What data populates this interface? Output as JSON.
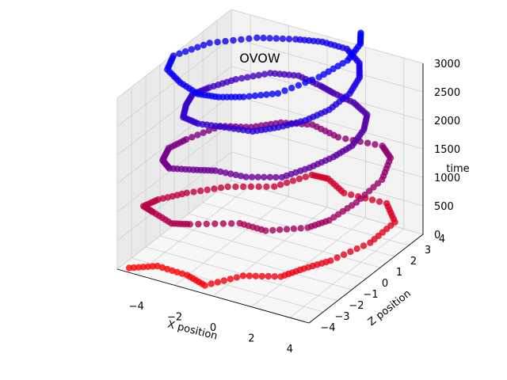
{
  "chart_data": {
    "type": "scatter",
    "projection": "3d",
    "title": "OVOW",
    "xlabel": "X position",
    "ylabel": "Z position",
    "zlabel": "time",
    "xlim": [
      -5,
      5
    ],
    "ylim": [
      -4,
      4
    ],
    "zlim": [
      0,
      3000
    ],
    "x_ticks": [
      "−4",
      "−2",
      "0",
      "2",
      "4"
    ],
    "y_ticks": [
      "−4",
      "−3",
      "−2",
      "−1",
      "0",
      "1",
      "2",
      "3",
      "4"
    ],
    "z_ticks": [
      "0",
      "500",
      "1000",
      "1500",
      "2000",
      "2500",
      "3000"
    ],
    "grid": true,
    "color_encoding": {
      "start_color": "#ff0000",
      "end_color": "#0000ff",
      "variable": "time"
    },
    "series": [
      {
        "x": [
          -4.6,
          -3.5,
          -1.8,
          -0.5,
          0.6,
          2.2,
          2.8,
          3.6,
          4.4,
          4.5,
          3.4,
          1.4,
          0.2,
          -0.5,
          -1.2,
          -2.8,
          -3.9,
          -4.5,
          -4.6,
          -3.8,
          -2.4,
          -1.5,
          0.5,
          2.0,
          3.6,
          4.2,
          4.5,
          4.5,
          3.9,
          3.1,
          1.1,
          -0.4,
          -1.6,
          -2.4,
          -3.5,
          -4.0,
          -4.1,
          -3.6,
          -2.8,
          -1.7,
          -0.7,
          0.9,
          2.4,
          3.1,
          3.6,
          3.9,
          3.7,
          3.2,
          2.2,
          1.1,
          0.3,
          -0.9,
          -2.0,
          -2.9,
          -3.4,
          -3.6,
          -3.2,
          -2.6,
          -1.6,
          -0.3,
          1.1,
          2.0,
          2.8,
          3.3,
          3.4,
          3.1,
          2.5,
          1.4,
          0.2,
          -0.9,
          -2.4,
          -3.9,
          -4.6,
          -4.1,
          -2.9,
          -1.6,
          -0.6,
          0.4,
          1.6,
          2.4,
          2.7,
          2.4,
          1.9
        ],
        "y": [
          -3.7,
          -3.2,
          -3.4,
          -3.9,
          -2.7,
          -2.2,
          -1.4,
          -0.6,
          1.1,
          2.7,
          3.6,
          3.3,
          3.8,
          3.6,
          1.9,
          0.8,
          -0.6,
          -1.8,
          -2.7,
          -3.1,
          -3.7,
          -3.6,
          -2.8,
          -3.0,
          -2.2,
          -1.5,
          0.0,
          1.8,
          3.2,
          3.7,
          3.3,
          3.5,
          2.9,
          1.9,
          1.2,
          -0.5,
          -1.6,
          -2.7,
          -3.3,
          -3.1,
          -2.9,
          -2.9,
          -2.4,
          -1.4,
          -0.4,
          0.5,
          1.6,
          2.5,
          2.9,
          3.0,
          3.1,
          3.2,
          2.7,
          1.5,
          0.3,
          -0.6,
          -1.6,
          -2.6,
          -2.9,
          -2.8,
          -2.7,
          -2.1,
          -1.3,
          -0.3,
          1.0,
          2.1,
          2.9,
          3.5,
          3.4,
          3.0,
          2.3,
          1.0,
          -0.6,
          -1.7,
          -2.4,
          -2.9,
          -2.8,
          -2.4,
          -1.6,
          0.2,
          1.8,
          3.1,
          3.8
        ],
        "z": [
          0,
          40,
          80,
          120,
          160,
          200,
          240,
          300,
          360,
          420,
          470,
          520,
          560,
          600,
          660,
          720,
          780,
          840,
          890,
          940,
          990,
          1040,
          1090,
          1140,
          1190,
          1240,
          1290,
          1340,
          1390,
          1430,
          1470,
          1510,
          1550,
          1590,
          1640,
          1690,
          1740,
          1790,
          1840,
          1880,
          1920,
          1960,
          2000,
          2040,
          2080,
          2130,
          2180,
          2220,
          2260,
          2300,
          2340,
          2380,
          2420,
          2460,
          2500,
          2540,
          2580,
          2620,
          2660,
          2700,
          2740,
          2780,
          2820,
          2860,
          2900,
          2940,
          2980,
          3010,
          3040,
          3060,
          3080,
          3100,
          3120,
          3140,
          3160,
          3180,
          3200,
          3220,
          3240,
          3250,
          3260,
          3270,
          3280
        ]
      }
    ]
  }
}
